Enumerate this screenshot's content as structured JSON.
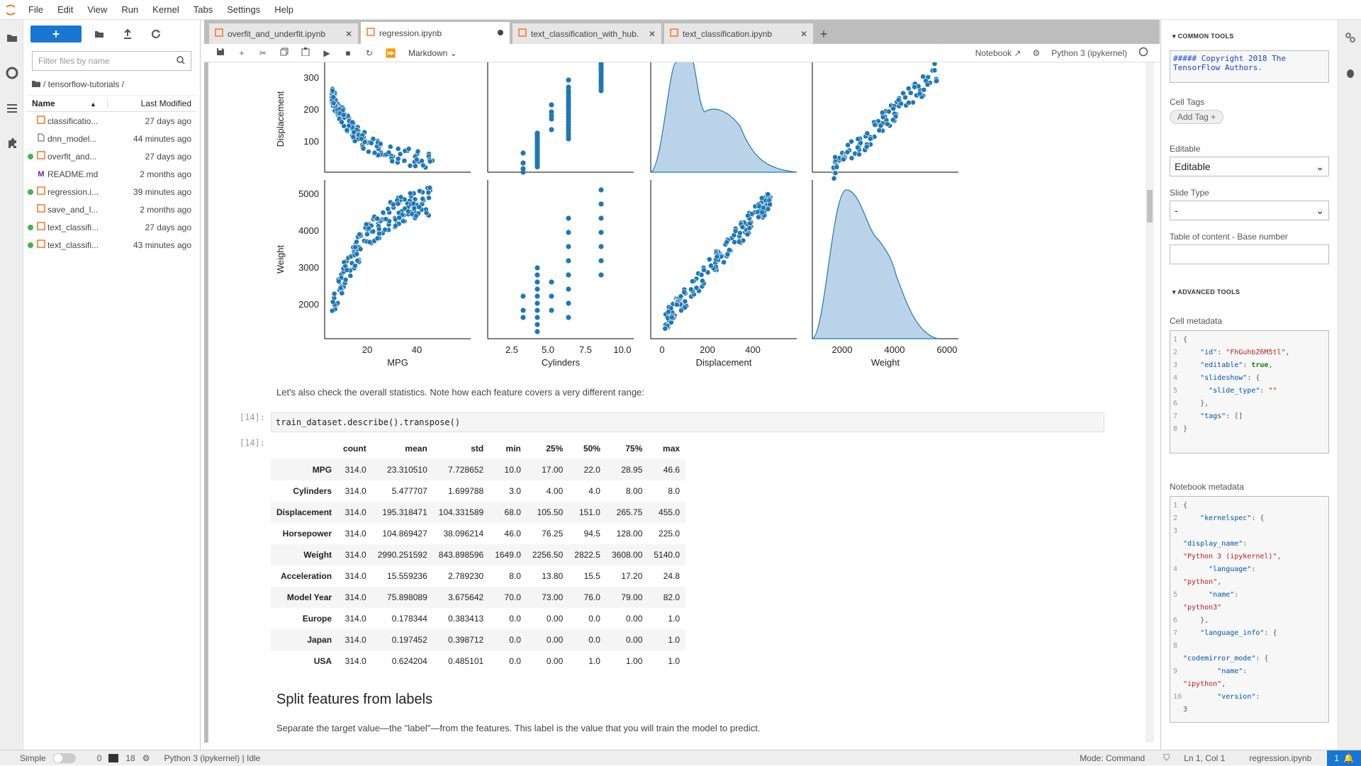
{
  "menu": [
    "File",
    "Edit",
    "View",
    "Run",
    "Kernel",
    "Tabs",
    "Settings",
    "Help"
  ],
  "filebrowser": {
    "filter_placeholder": "Filter files by name",
    "breadcrumb": "/ tensorflow-tutorials /",
    "col_name": "Name",
    "col_modified": "Last Modified",
    "files": [
      {
        "name": "classificatio...",
        "modified": "27 days ago",
        "running": false,
        "icon": "notebook-icon"
      },
      {
        "name": "dnn_model...",
        "modified": "44 minutes ago",
        "running": false,
        "icon": "file-icon"
      },
      {
        "name": "overfit_and...",
        "modified": "27 days ago",
        "running": true,
        "icon": "notebook-icon"
      },
      {
        "name": "README.md",
        "modified": "2 months ago",
        "running": false,
        "icon": "markdown-icon"
      },
      {
        "name": "regression.i...",
        "modified": "39 minutes ago",
        "running": true,
        "icon": "notebook-icon"
      },
      {
        "name": "save_and_l...",
        "modified": "2 months ago",
        "running": false,
        "icon": "notebook-icon"
      },
      {
        "name": "text_classifi...",
        "modified": "27 days ago",
        "running": true,
        "icon": "notebook-icon"
      },
      {
        "name": "text_classifi...",
        "modified": "43 minutes ago",
        "running": true,
        "icon": "notebook-icon"
      }
    ]
  },
  "tabs": [
    {
      "label": "overfit_and_underfit.ipynb",
      "active": false,
      "dirty": false
    },
    {
      "label": "regression.ipynb",
      "active": true,
      "dirty": true
    },
    {
      "label": "text_classification_with_hub.",
      "active": false,
      "dirty": false
    },
    {
      "label": "text_classification.ipynb",
      "active": false,
      "dirty": false
    }
  ],
  "toolbar": {
    "cell_type": "Markdown",
    "notebook_label": "Notebook",
    "kernel": "Python 3 (ipykernel)"
  },
  "plots": {
    "y_ticks_top": [
      "300",
      "200",
      "100"
    ],
    "y_label_top": "Displacement",
    "y_ticks_weight": [
      "5000",
      "4000",
      "3000",
      "2000"
    ],
    "y_label_weight": "Weight",
    "x_ticks": [
      [
        "20",
        "40"
      ],
      [
        "2.5",
        "5.0",
        "7.5",
        "10.0"
      ],
      [
        "0",
        "200",
        "400"
      ],
      [
        "2000",
        "4000",
        "6000"
      ]
    ],
    "x_labels": [
      "MPG",
      "Cylinders",
      "Displacement",
      "Weight"
    ]
  },
  "notebook": {
    "text1": "Let's also check the overall statistics. Note how each feature covers a very different range:",
    "in_prompt": "[14]:",
    "out_prompt": "[14]:",
    "code": "train_dataset.describe().transpose()",
    "table": {
      "columns": [
        "count",
        "mean",
        "std",
        "min",
        "25%",
        "50%",
        "75%",
        "max"
      ],
      "rows": [
        {
          "name": "MPG",
          "vals": [
            "314.0",
            "23.310510",
            "7.728652",
            "10.0",
            "17.00",
            "22.0",
            "28.95",
            "46.6"
          ]
        },
        {
          "name": "Cylinders",
          "vals": [
            "314.0",
            "5.477707",
            "1.699788",
            "3.0",
            "4.00",
            "4.0",
            "8.00",
            "8.0"
          ]
        },
        {
          "name": "Displacement",
          "vals": [
            "314.0",
            "195.318471",
            "104.331589",
            "68.0",
            "105.50",
            "151.0",
            "265.75",
            "455.0"
          ]
        },
        {
          "name": "Horsepower",
          "vals": [
            "314.0",
            "104.869427",
            "38.096214",
            "46.0",
            "76.25",
            "94.5",
            "128.00",
            "225.0"
          ]
        },
        {
          "name": "Weight",
          "vals": [
            "314.0",
            "2990.251592",
            "843.898596",
            "1649.0",
            "2256.50",
            "2822.5",
            "3608.00",
            "5140.0"
          ]
        },
        {
          "name": "Acceleration",
          "vals": [
            "314.0",
            "15.559236",
            "2.789230",
            "8.0",
            "13.80",
            "15.5",
            "17.20",
            "24.8"
          ]
        },
        {
          "name": "Model Year",
          "vals": [
            "314.0",
            "75.898089",
            "3.675642",
            "70.0",
            "73.00",
            "76.0",
            "79.00",
            "82.0"
          ]
        },
        {
          "name": "Europe",
          "vals": [
            "314.0",
            "0.178344",
            "0.383413",
            "0.0",
            "0.00",
            "0.0",
            "0.00",
            "1.0"
          ]
        },
        {
          "name": "Japan",
          "vals": [
            "314.0",
            "0.197452",
            "0.398712",
            "0.0",
            "0.00",
            "0.0",
            "0.00",
            "1.0"
          ]
        },
        {
          "name": "USA",
          "vals": [
            "314.0",
            "0.624204",
            "0.485101",
            "0.0",
            "0.00",
            "1.0",
            "1.00",
            "1.0"
          ]
        }
      ]
    },
    "heading": "Split features from labels",
    "text2": "Separate the target value—the \"label\"—from the features. This label is the value that you will train the model to predict."
  },
  "inspector": {
    "common_tools": "COMMON TOOLS",
    "preview": "##### Copyright 2018 The TensorFlow Authors.",
    "cell_tags": "Cell Tags",
    "add_tag": "Add Tag",
    "editable_label": "Editable",
    "editable_value": "Editable",
    "slide_type_label": "Slide Type",
    "slide_type_value": "-",
    "toc_label": "Table of content - Base number",
    "advanced_tools": "ADVANCED TOOLS",
    "cell_metadata": "Cell metadata",
    "notebook_metadata": "Notebook metadata"
  },
  "status": {
    "mode": "Simple",
    "n1": "0",
    "n2": "18",
    "kernel_status": "Python 3 (ipykernel) | Idle",
    "command": "Mode: Command",
    "position": "Ln 1, Col 1",
    "file": "regression.ipynb",
    "notif": "1"
  },
  "colors": {
    "accent": "#1976d2",
    "scatter": "#1f77b4",
    "kde_fill": "#aac8e4",
    "running": "#4caf50",
    "notebook_orange": "#f37626"
  }
}
